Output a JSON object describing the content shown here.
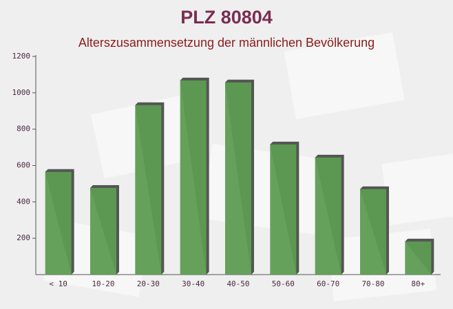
{
  "chart_data": {
    "type": "bar",
    "title": "PLZ 80804",
    "subtitle": "Alterszusammensetzung der männlichen Bevölkerung",
    "categories": [
      "< 10",
      "10-20",
      "20-30",
      "30-40",
      "40-50",
      "50-60",
      "60-70",
      "70-80",
      "80+"
    ],
    "values": [
      565,
      477,
      932,
      1068,
      1057,
      716,
      644,
      470,
      182
    ],
    "color": "#5d9c52",
    "ylim": [
      0,
      1200
    ],
    "yticks": [
      200,
      400,
      600,
      800,
      1000,
      1200
    ],
    "grid": false
  }
}
